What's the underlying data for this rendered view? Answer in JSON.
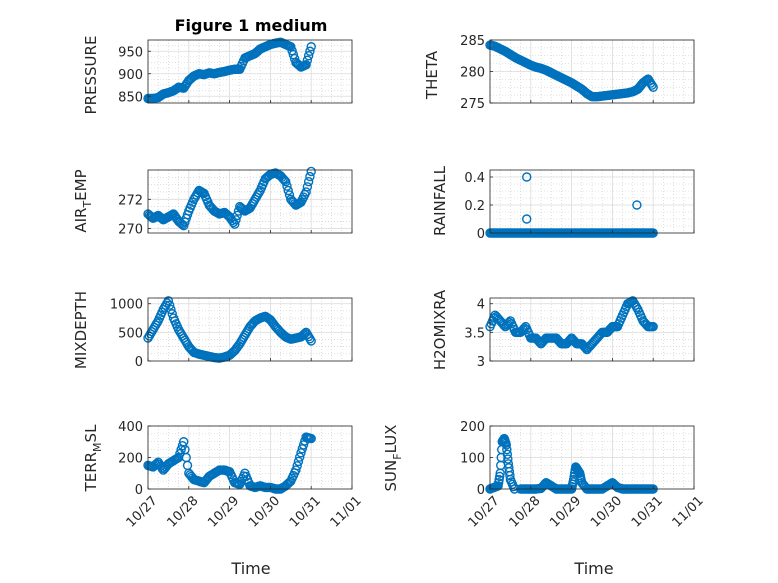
{
  "figure": {
    "title": "Figure 1 medium",
    "xlabel": "Time",
    "date_ticks": [
      "10/27",
      "10/28",
      "10/29",
      "10/30",
      "10/31",
      "11/01"
    ],
    "marker_color": "#0072BD",
    "grid_color": "#c8c8c8",
    "axis_color": "#262626"
  },
  "chart_data": [
    {
      "type": "scatter",
      "name": "PRESSURE",
      "ylabel": "PRESSURE",
      "x_range_days": [
        0,
        5
      ],
      "ylim": [
        835,
        975
      ],
      "yticks": [
        850,
        900,
        950
      ],
      "series": [
        {
          "name": "PRESSURE",
          "x": [
            0.0,
            0.125,
            0.25,
            0.375,
            0.5,
            0.625,
            0.75,
            0.875,
            1.0,
            1.125,
            1.25,
            1.375,
            1.5,
            1.625,
            1.75,
            1.875,
            2.0,
            2.125,
            2.25,
            2.375,
            2.5,
            2.625,
            2.75,
            2.875,
            3.0,
            3.125,
            3.25,
            3.375,
            3.5,
            3.625,
            3.75,
            3.875,
            4.0
          ],
          "y": [
            845,
            845,
            847,
            855,
            858,
            862,
            870,
            868,
            885,
            895,
            900,
            898,
            902,
            900,
            903,
            905,
            908,
            910,
            910,
            935,
            940,
            945,
            955,
            960,
            965,
            968,
            970,
            965,
            960,
            925,
            915,
            920,
            960
          ]
        }
      ]
    },
    {
      "type": "scatter",
      "name": "THETA",
      "ylabel": "THETA",
      "x_range_days": [
        0,
        5
      ],
      "ylim": [
        275,
        285
      ],
      "yticks": [
        275,
        280,
        285
      ],
      "series": [
        {
          "name": "THETA",
          "x": [
            0.0,
            0.125,
            0.25,
            0.375,
            0.5,
            0.625,
            0.75,
            0.875,
            1.0,
            1.125,
            1.25,
            1.375,
            1.5,
            1.625,
            1.75,
            1.875,
            2.0,
            2.125,
            2.25,
            2.375,
            2.5,
            2.625,
            2.75,
            2.875,
            3.0,
            3.125,
            3.25,
            3.375,
            3.5,
            3.625,
            3.75,
            3.875,
            4.0
          ],
          "y": [
            284.2,
            284.0,
            283.6,
            283.2,
            282.7,
            282.2,
            281.8,
            281.4,
            281.0,
            280.7,
            280.5,
            280.2,
            279.8,
            279.4,
            279.0,
            278.6,
            278.2,
            277.7,
            277.2,
            276.5,
            276.0,
            276.0,
            276.1,
            276.2,
            276.3,
            276.4,
            276.5,
            276.6,
            276.8,
            277.2,
            278.2,
            278.8,
            277.5
          ]
        }
      ]
    },
    {
      "type": "scatter",
      "name": "AIR_TEMP",
      "ylabel": "AIR_TEMP",
      "x_range_days": [
        0,
        5
      ],
      "ylim": [
        269.7,
        274.0
      ],
      "yticks": [
        270,
        272
      ],
      "series": [
        {
          "name": "AIR_TEMP",
          "x": [
            0.0,
            0.125,
            0.25,
            0.375,
            0.5,
            0.625,
            0.75,
            0.875,
            1.0,
            1.125,
            1.25,
            1.375,
            1.5,
            1.625,
            1.75,
            1.875,
            2.0,
            2.125,
            2.25,
            2.375,
            2.5,
            2.625,
            2.75,
            2.875,
            3.0,
            3.125,
            3.25,
            3.375,
            3.5,
            3.625,
            3.75,
            3.875,
            4.0
          ],
          "y": [
            271.0,
            270.7,
            270.9,
            270.6,
            270.8,
            271.0,
            270.5,
            270.2,
            271.2,
            272.0,
            272.6,
            272.4,
            271.6,
            271.2,
            271.0,
            271.1,
            270.8,
            270.3,
            271.5,
            271.2,
            271.4,
            272.0,
            272.6,
            273.4,
            273.7,
            273.8,
            273.6,
            273.2,
            272.0,
            271.6,
            271.8,
            272.5,
            273.9
          ]
        }
      ]
    },
    {
      "type": "scatter",
      "name": "RAINFALL",
      "ylabel": "RAINFALL",
      "x_range_days": [
        0,
        5
      ],
      "ylim": [
        0,
        0.45
      ],
      "yticks": [
        0,
        0.2,
        0.4
      ],
      "series": [
        {
          "name": "RAINFALL",
          "x": [
            0.0,
            0.125,
            0.25,
            0.375,
            0.5,
            0.625,
            0.75,
            0.875,
            1.0,
            1.125,
            1.25,
            1.375,
            1.5,
            1.625,
            1.75,
            1.875,
            2.0,
            2.125,
            2.25,
            2.375,
            2.5,
            2.625,
            2.75,
            2.875,
            3.0,
            3.125,
            3.25,
            3.375,
            3.5,
            3.625,
            3.75,
            3.875,
            4.0,
            0.9,
            0.9,
            3.6
          ],
          "y": [
            0,
            0,
            0,
            0,
            0,
            0,
            0,
            0,
            0,
            0,
            0,
            0,
            0,
            0,
            0,
            0,
            0,
            0,
            0,
            0,
            0,
            0,
            0,
            0,
            0,
            0,
            0,
            0,
            0,
            0,
            0,
            0,
            0,
            0.4,
            0.1,
            0.2
          ]
        }
      ]
    },
    {
      "type": "scatter",
      "name": "MIXDEPTH",
      "ylabel": "MIXDEPTH",
      "x_range_days": [
        0,
        5
      ],
      "ylim": [
        0,
        1100
      ],
      "yticks": [
        0,
        500,
        1000
      ],
      "series": [
        {
          "name": "MIXDEPTH",
          "x": [
            0.0,
            0.125,
            0.25,
            0.375,
            0.5,
            0.625,
            0.75,
            0.875,
            1.0,
            1.125,
            1.25,
            1.375,
            1.5,
            1.625,
            1.75,
            1.875,
            2.0,
            2.125,
            2.25,
            2.375,
            2.5,
            2.625,
            2.75,
            2.875,
            3.0,
            3.125,
            3.25,
            3.375,
            3.5,
            3.625,
            3.75,
            3.875,
            4.0
          ],
          "y": [
            400,
            550,
            700,
            900,
            1050,
            750,
            550,
            400,
            250,
            150,
            120,
            100,
            80,
            60,
            50,
            70,
            100,
            180,
            300,
            450,
            600,
            700,
            750,
            780,
            720,
            600,
            500,
            420,
            380,
            400,
            420,
            500,
            350
          ]
        }
      ]
    },
    {
      "type": "scatter",
      "name": "H2OMIXRA",
      "ylabel": "H2OMIXRA",
      "x_range_days": [
        0,
        5
      ],
      "ylim": [
        3.0,
        4.1
      ],
      "yticks": [
        3,
        3.5,
        4
      ],
      "series": [
        {
          "name": "H2OMIXRA",
          "x": [
            0.0,
            0.125,
            0.25,
            0.375,
            0.5,
            0.625,
            0.75,
            0.875,
            1.0,
            1.125,
            1.25,
            1.375,
            1.5,
            1.625,
            1.75,
            1.875,
            2.0,
            2.125,
            2.25,
            2.375,
            2.5,
            2.625,
            2.75,
            2.875,
            3.0,
            3.125,
            3.25,
            3.375,
            3.5,
            3.625,
            3.75,
            3.875,
            4.0
          ],
          "y": [
            3.6,
            3.8,
            3.7,
            3.6,
            3.7,
            3.5,
            3.5,
            3.6,
            3.4,
            3.4,
            3.3,
            3.4,
            3.4,
            3.4,
            3.3,
            3.3,
            3.4,
            3.3,
            3.3,
            3.2,
            3.3,
            3.4,
            3.5,
            3.5,
            3.6,
            3.6,
            3.8,
            4.0,
            4.05,
            3.9,
            3.7,
            3.6,
            3.6
          ]
        }
      ]
    },
    {
      "type": "scatter",
      "name": "TERR_MSL",
      "ylabel": "TERR_MSL",
      "x_range_days": [
        0,
        5
      ],
      "ylim": [
        0,
        400
      ],
      "yticks": [
        0,
        200,
        400
      ],
      "series": [
        {
          "name": "TERR_MSL",
          "x": [
            0.0,
            0.125,
            0.25,
            0.375,
            0.5,
            0.625,
            0.75,
            0.875,
            1.0,
            1.125,
            1.25,
            1.375,
            1.5,
            1.625,
            1.75,
            1.875,
            2.0,
            2.125,
            2.25,
            2.375,
            2.5,
            2.625,
            2.75,
            2.875,
            3.0,
            3.125,
            3.25,
            3.375,
            3.5,
            3.625,
            3.75,
            3.875,
            4.0
          ],
          "y": [
            150,
            140,
            170,
            120,
            160,
            180,
            200,
            300,
            100,
            60,
            50,
            40,
            80,
            100,
            120,
            120,
            110,
            40,
            30,
            100,
            20,
            10,
            20,
            10,
            10,
            0,
            0,
            20,
            50,
            120,
            230,
            330,
            320
          ]
        }
      ]
    },
    {
      "type": "scatter",
      "name": "SUN_FLUX",
      "ylabel": "SUN_FLUX",
      "x_range_days": [
        0,
        5
      ],
      "ylim": [
        0,
        200
      ],
      "yticks": [
        0,
        100,
        200
      ],
      "series": [
        {
          "name": "SUN_FLUX",
          "x": [
            0.0,
            0.1,
            0.2,
            0.25,
            0.3,
            0.35,
            0.4,
            0.45,
            0.5,
            0.6,
            0.75,
            0.875,
            1.0,
            1.125,
            1.25,
            1.375,
            1.5,
            1.625,
            1.75,
            1.875,
            2.0,
            2.05,
            2.1,
            2.15,
            2.2,
            2.25,
            2.375,
            2.5,
            2.625,
            2.75,
            2.875,
            3.0,
            3.125,
            3.25,
            3.375,
            3.5,
            3.625,
            3.75,
            3.875,
            4.0
          ],
          "y": [
            0,
            5,
            10,
            50,
            150,
            160,
            140,
            80,
            30,
            0,
            0,
            0,
            0,
            0,
            2,
            20,
            10,
            0,
            0,
            0,
            0,
            30,
            70,
            60,
            50,
            20,
            0,
            0,
            0,
            0,
            10,
            20,
            5,
            0,
            0,
            0,
            0,
            0,
            0,
            0
          ]
        }
      ]
    }
  ]
}
